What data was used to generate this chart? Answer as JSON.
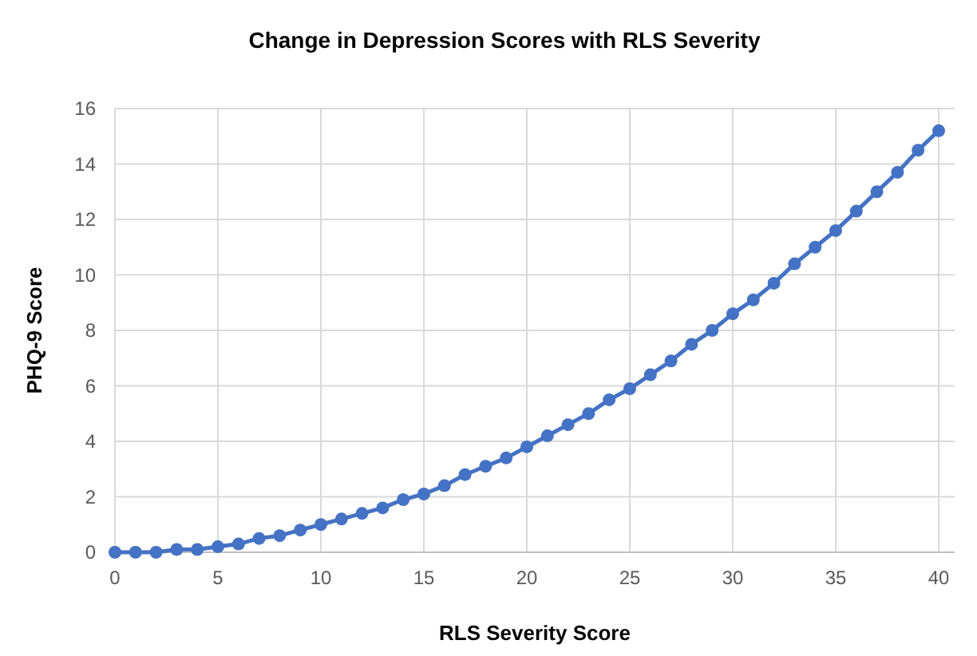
{
  "chart_data": {
    "type": "line",
    "title": "Change in Depression Scores with RLS Severity",
    "xlabel": "RLS Severity Score",
    "ylabel": "PHQ-9 Score",
    "x": [
      0,
      1,
      2,
      3,
      4,
      5,
      6,
      7,
      8,
      9,
      10,
      11,
      12,
      13,
      14,
      15,
      16,
      17,
      18,
      19,
      20,
      21,
      22,
      23,
      24,
      25,
      26,
      27,
      28,
      29,
      30,
      31,
      32,
      33,
      34,
      35,
      36,
      37,
      38,
      39,
      40
    ],
    "series": [
      {
        "color": "#4472c4",
        "values": [
          0,
          0,
          0,
          0.1,
          0.1,
          0.2,
          0.3,
          0.5,
          0.6,
          0.8,
          1,
          1.2,
          1.4,
          1.6,
          1.9,
          2.1,
          2.4,
          2.8,
          3.1,
          3.4,
          3.8,
          4.2,
          4.6,
          5,
          5.5,
          5.9,
          6.4,
          6.9,
          7.5,
          8,
          8.6,
          9.1,
          9.7,
          10.4,
          11,
          11.6,
          12.3,
          13,
          13.7,
          14.5,
          15.2
        ]
      }
    ],
    "xlim": [
      0,
      40
    ],
    "xticks": [
      0,
      5,
      10,
      15,
      20,
      25,
      30,
      35,
      40
    ],
    "ylim": [
      0,
      16
    ],
    "yticks": [
      0,
      2,
      4,
      6,
      8,
      10,
      12,
      14,
      16
    ],
    "grid": true,
    "marker": "circle",
    "line_style": "solid"
  }
}
